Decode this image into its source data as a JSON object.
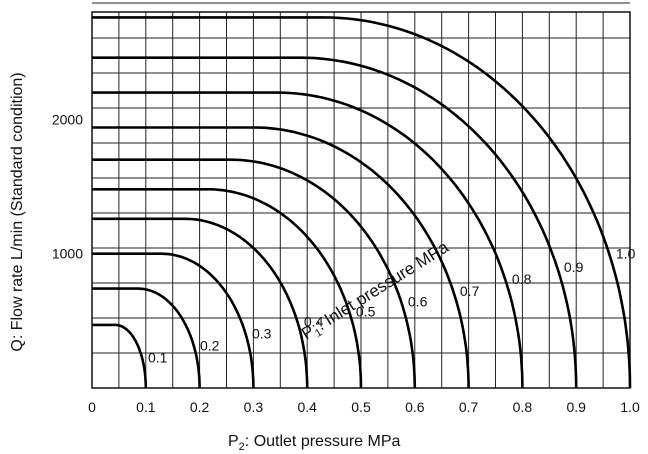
{
  "chart_data": {
    "type": "line",
    "xlabel_prefix": "P",
    "xlabel_sub": "2",
    "xlabel_rest": ": Outlet pressure    MPa",
    "ylabel": "Q: Flow rate    L/min (Standard condition)",
    "xlim": [
      0,
      1.0
    ],
    "ylim": [
      0,
      2800
    ],
    "xticks": [
      "0",
      "0.1",
      "0.2",
      "0.3",
      "0.4",
      "0.5",
      "0.6",
      "0.7",
      "0.8",
      "0.9",
      "1.0"
    ],
    "yticks": [
      "1000",
      "2000"
    ],
    "grid": true,
    "annotation_prefix": "P",
    "annotation_sub": "1",
    "annotation_rest": ": Inlet pressure    MPa",
    "series": [
      {
        "name": "0.1",
        "inlet": 0.1,
        "qmax": 470
      },
      {
        "name": "0.2",
        "inlet": 0.2,
        "qmax": 740
      },
      {
        "name": "0.3",
        "inlet": 0.3,
        "qmax": 1000
      },
      {
        "name": "0.4",
        "inlet": 0.4,
        "qmax": 1260
      },
      {
        "name": "0.5",
        "inlet": 0.5,
        "qmax": 1480
      },
      {
        "name": "0.6",
        "inlet": 0.6,
        "qmax": 1700
      },
      {
        "name": "0.7",
        "inlet": 0.7,
        "qmax": 1940
      },
      {
        "name": "0.8",
        "inlet": 0.8,
        "qmax": 2200
      },
      {
        "name": "0.9",
        "inlet": 0.9,
        "qmax": 2460
      },
      {
        "name": "1.0",
        "inlet": 1.0,
        "qmax": 2760
      }
    ]
  }
}
